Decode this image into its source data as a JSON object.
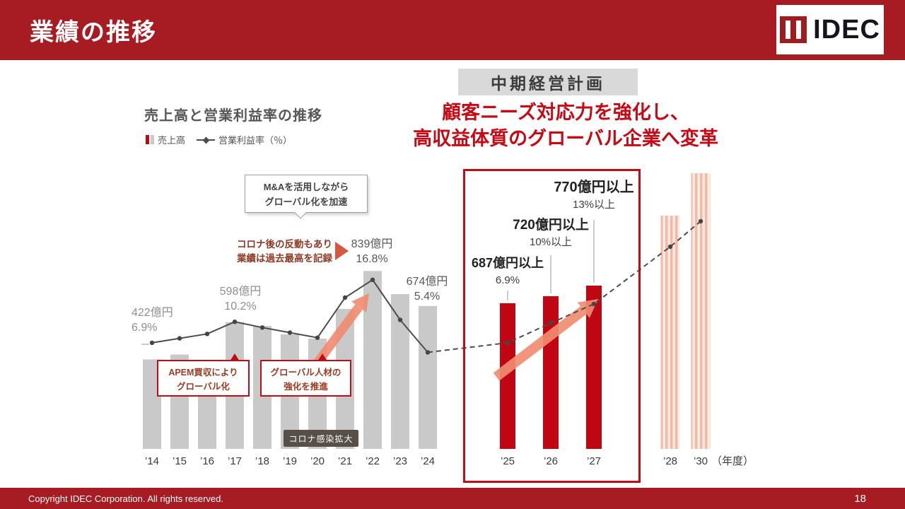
{
  "header": {
    "title": "業績の推移",
    "logo_text": "IDEC"
  },
  "badge": {
    "label": "中期経営計画"
  },
  "headline": {
    "line1": "顧客ニーズ対応力を強化し、",
    "line2": "高収益体質のグローバル企業へ変革"
  },
  "chart": {
    "title": "売上高と営業利益率の推移",
    "legend_bars": "売上高",
    "legend_line": "営業利益率（％）"
  },
  "annotations": {
    "y14": {
      "line1": "422億円",
      "line2": "6.9%"
    },
    "y17": {
      "line1": "598億円",
      "line2": "10.2%"
    },
    "y22": {
      "line1": "839億円",
      "line2": "16.8%"
    },
    "y24": {
      "line1": "674億円",
      "line2": "5.4%"
    },
    "y25": {
      "line1": "687億円以上",
      "line2": "6.9%"
    },
    "y26": {
      "line1": "720億円以上",
      "line2": "10%以上"
    },
    "y27": {
      "line1": "770億円以上",
      "line2": "13%以上"
    },
    "ma_callout": {
      "line1": "M&Aを活用しながら",
      "line2": "グローバル化を加速"
    },
    "corona_note": {
      "line1": "コロナ後の反動もあり",
      "line2": "業績は過去最高を記録"
    },
    "apem_box": {
      "line1": "APEM買収により",
      "line2": "グローバル化"
    },
    "jinzai_box": {
      "line1": "グローバル人材の",
      "line2": "強化を推進"
    },
    "corona_badge": "コロナ感染拡大"
  },
  "footer": {
    "copyright": "Copyright IDEC Corporation. All rights reserved.",
    "page": "18"
  },
  "colors": {
    "header_red": "#a61c22",
    "accent_red": "#c00613",
    "plan_box_red": "#bf0d18",
    "bar_gray": "#c9c9c9",
    "line_gray": "#4d4d4d",
    "arrow_salmon": "#f08d72",
    "badge_gray": "#d9d9d9"
  },
  "chart_data": {
    "type": "bar+line",
    "title": "売上高と営業利益率の推移",
    "axis_suffix": "（年度）",
    "series": [
      {
        "name": "売上高",
        "type": "bar",
        "unit": "億円"
      },
      {
        "name": "営業利益率（％）",
        "type": "line",
        "unit": "%"
      }
    ],
    "points": [
      {
        "year": "’14",
        "segment": "past",
        "actual": true,
        "revenue": 422,
        "rate": 6.9
      },
      {
        "year": "’15",
        "segment": "past",
        "actual": true,
        "revenue": 445,
        "rate": 7.6
      },
      {
        "year": "’16",
        "segment": "past",
        "actual": true,
        "revenue": 415,
        "rate": 8.3
      },
      {
        "year": "’17",
        "segment": "past",
        "actual": true,
        "revenue": 598,
        "rate": 10.2
      },
      {
        "year": "’18",
        "segment": "past",
        "actual": true,
        "revenue": 580,
        "rate": 9.3
      },
      {
        "year": "’19",
        "segment": "past",
        "actual": true,
        "revenue": 540,
        "rate": 8.5
      },
      {
        "year": "’20",
        "segment": "past",
        "actual": true,
        "revenue": 520,
        "rate": 7.7
      },
      {
        "year": "’21",
        "segment": "past",
        "actual": true,
        "revenue": 660,
        "rate": 14.0
      },
      {
        "year": "’22",
        "segment": "past",
        "actual": true,
        "revenue": 839,
        "rate": 16.8
      },
      {
        "year": "’23",
        "segment": "past",
        "actual": true,
        "revenue": 730,
        "rate": 10.5
      },
      {
        "year": "’24",
        "segment": "past",
        "actual": true,
        "revenue": 674,
        "rate": 5.4
      },
      {
        "year": "’25",
        "segment": "plan",
        "actual": false,
        "revenue": 687,
        "rate": 6.9
      },
      {
        "year": "’26",
        "segment": "plan",
        "actual": false,
        "revenue": 720,
        "rate": 10
      },
      {
        "year": "’27",
        "segment": "plan",
        "actual": false,
        "revenue": 770,
        "rate": 13
      },
      {
        "year": "’28",
        "segment": "future",
        "actual": false,
        "revenue": 1100,
        "rate": 22
      },
      {
        "year": "’30",
        "segment": "future",
        "actual": false,
        "revenue": 1300,
        "rate": 26
      }
    ]
  }
}
